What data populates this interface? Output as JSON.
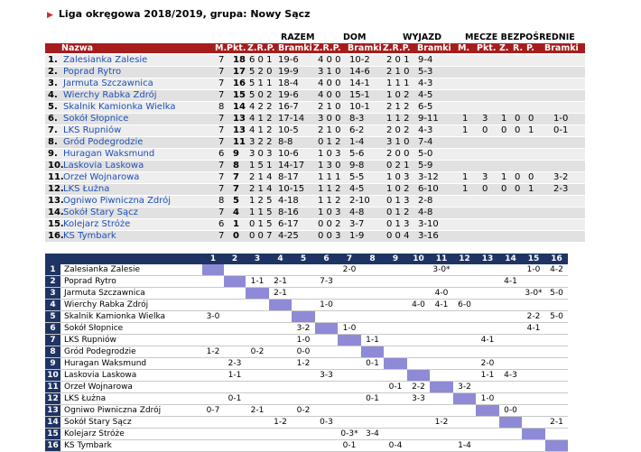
{
  "title": "Liga okręgowa 2018/2019, grupa: Nowy Sącz",
  "title_arrow": "▶",
  "group_labels": {
    "razem": "RAZEM",
    "dom": "DOM",
    "wyjazd": "WYJAZD",
    "mecze": "MECZE BEZPOŚREDNIE"
  },
  "header": {
    "nazwa": "Nazwa",
    "m": "M.",
    "pkt": "Pkt.",
    "zrp": "Z.R.P.",
    "bramki": "Bramki",
    "dom_zrp": "Z.R.P.",
    "dom_bramki": "Bramki",
    "wy_zrp": "Z.R.P.",
    "wy_bramki": "Bramki",
    "bm_m": "M.",
    "bm_pkt": "Pkt.",
    "bm_z": "Z.",
    "bm_r": "R.",
    "bm_p": "P.",
    "bm_bramki": "Bramki"
  },
  "standings": [
    {
      "pos": "1.",
      "team": "Zalesianka Zalesie",
      "m": "7",
      "pkt": "18",
      "zrp": "6 0 1",
      "bramki": "19-6",
      "dom_zrp": "4 0 0",
      "dom_bramki": "10-2",
      "wy_zrp": "2 0 1",
      "wy_bramki": "9-4",
      "bm_m": "",
      "bm_pkt": "",
      "bm_z": "",
      "bm_r": "",
      "bm_p": "",
      "bm_bramki": ""
    },
    {
      "pos": "2.",
      "team": "Poprad Rytro",
      "m": "7",
      "pkt": "17",
      "zrp": "5 2 0",
      "bramki": "19-9",
      "dom_zrp": "3 1 0",
      "dom_bramki": "14-6",
      "wy_zrp": "2 1 0",
      "wy_bramki": "5-3",
      "bm_m": "",
      "bm_pkt": "",
      "bm_z": "",
      "bm_r": "",
      "bm_p": "",
      "bm_bramki": ""
    },
    {
      "pos": "3.",
      "team": "Jarmuta Szczawnica",
      "m": "7",
      "pkt": "16",
      "zrp": "5 1 1",
      "bramki": "18-4",
      "dom_zrp": "4 0 0",
      "dom_bramki": "14-1",
      "wy_zrp": "1 1 1",
      "wy_bramki": "4-3",
      "bm_m": "",
      "bm_pkt": "",
      "bm_z": "",
      "bm_r": "",
      "bm_p": "",
      "bm_bramki": ""
    },
    {
      "pos": "4.",
      "team": "Wierchy Rabka Zdrój",
      "m": "7",
      "pkt": "15",
      "zrp": "5 0 2",
      "bramki": "19-6",
      "dom_zrp": "4 0 0",
      "dom_bramki": "15-1",
      "wy_zrp": "1 0 2",
      "wy_bramki": "4-5",
      "bm_m": "",
      "bm_pkt": "",
      "bm_z": "",
      "bm_r": "",
      "bm_p": "",
      "bm_bramki": ""
    },
    {
      "pos": "5.",
      "team": "Skalnik Kamionka Wielka",
      "m": "8",
      "pkt": "14",
      "zrp": "4 2 2",
      "bramki": "16-7",
      "dom_zrp": "2 1 0",
      "dom_bramki": "10-1",
      "wy_zrp": "2 1 2",
      "wy_bramki": "6-5",
      "bm_m": "",
      "bm_pkt": "",
      "bm_z": "",
      "bm_r": "",
      "bm_p": "",
      "bm_bramki": ""
    },
    {
      "pos": "6.",
      "team": "Sokół Słopnice",
      "m": "7",
      "pkt": "13",
      "zrp": "4 1 2",
      "bramki": "17-14",
      "dom_zrp": "3 0 0",
      "dom_bramki": "8-3",
      "wy_zrp": "1 1 2",
      "wy_bramki": "9-11",
      "bm_m": "1",
      "bm_pkt": "3",
      "bm_z": "1",
      "bm_r": "0",
      "bm_p": "0",
      "bm_bramki": "1-0"
    },
    {
      "pos": "7.",
      "team": "LKS Rupniów",
      "m": "7",
      "pkt": "13",
      "zrp": "4 1 2",
      "bramki": "10-5",
      "dom_zrp": "2 1 0",
      "dom_bramki": "6-2",
      "wy_zrp": "2 0 2",
      "wy_bramki": "4-3",
      "bm_m": "1",
      "bm_pkt": "0",
      "bm_z": "0",
      "bm_r": "0",
      "bm_p": "1",
      "bm_bramki": "0-1"
    },
    {
      "pos": "8.",
      "team": "Gród Podegrodzie",
      "m": "7",
      "pkt": "11",
      "zrp": "3 2 2",
      "bramki": "8-8",
      "dom_zrp": "0 1 2",
      "dom_bramki": "1-4",
      "wy_zrp": "3 1 0",
      "wy_bramki": "7-4",
      "bm_m": "",
      "bm_pkt": "",
      "bm_z": "",
      "bm_r": "",
      "bm_p": "",
      "bm_bramki": ""
    },
    {
      "pos": "9.",
      "team": "Huragan Waksmund",
      "m": "6",
      "pkt": "9",
      "zrp": "3 0 3",
      "bramki": "10-6",
      "dom_zrp": "1 0 3",
      "dom_bramki": "5-6",
      "wy_zrp": "2 0 0",
      "wy_bramki": "5-0",
      "bm_m": "",
      "bm_pkt": "",
      "bm_z": "",
      "bm_r": "",
      "bm_p": "",
      "bm_bramki": ""
    },
    {
      "pos": "10.",
      "team": "Laskovia Laskowa",
      "m": "7",
      "pkt": "8",
      "zrp": "1 5 1",
      "bramki": "14-17",
      "dom_zrp": "1 3 0",
      "dom_bramki": "9-8",
      "wy_zrp": "0 2 1",
      "wy_bramki": "5-9",
      "bm_m": "",
      "bm_pkt": "",
      "bm_z": "",
      "bm_r": "",
      "bm_p": "",
      "bm_bramki": ""
    },
    {
      "pos": "11.",
      "team": "Orzeł Wojnarowa",
      "m": "7",
      "pkt": "7",
      "zrp": "2 1 4",
      "bramki": "8-17",
      "dom_zrp": "1 1 1",
      "dom_bramki": "5-5",
      "wy_zrp": "1 0 3",
      "wy_bramki": "3-12",
      "bm_m": "1",
      "bm_pkt": "3",
      "bm_z": "1",
      "bm_r": "0",
      "bm_p": "0",
      "bm_bramki": "3-2"
    },
    {
      "pos": "12.",
      "team": "LKS Łużna",
      "m": "7",
      "pkt": "7",
      "zrp": "2 1 4",
      "bramki": "10-15",
      "dom_zrp": "1 1 2",
      "dom_bramki": "4-5",
      "wy_zrp": "1 0 2",
      "wy_bramki": "6-10",
      "bm_m": "1",
      "bm_pkt": "0",
      "bm_z": "0",
      "bm_r": "0",
      "bm_p": "1",
      "bm_bramki": "2-3"
    },
    {
      "pos": "13.",
      "team": "Ogniwo Piwniczna Zdrój",
      "m": "8",
      "pkt": "5",
      "zrp": "1 2 5",
      "bramki": "4-18",
      "dom_zrp": "1 1 2",
      "dom_bramki": "2-10",
      "wy_zrp": "0 1 3",
      "wy_bramki": "2-8",
      "bm_m": "",
      "bm_pkt": "",
      "bm_z": "",
      "bm_r": "",
      "bm_p": "",
      "bm_bramki": ""
    },
    {
      "pos": "14.",
      "team": "Sokół Stary Sącz",
      "m": "7",
      "pkt": "4",
      "zrp": "1 1 5",
      "bramki": "8-16",
      "dom_zrp": "1 0 3",
      "dom_bramki": "4-8",
      "wy_zrp": "0 1 2",
      "wy_bramki": "4-8",
      "bm_m": "",
      "bm_pkt": "",
      "bm_z": "",
      "bm_r": "",
      "bm_p": "",
      "bm_bramki": ""
    },
    {
      "pos": "15.",
      "team": "Kolejarz Stróże",
      "m": "6",
      "pkt": "1",
      "zrp": "0 1 5",
      "bramki": "6-17",
      "dom_zrp": "0 0 2",
      "dom_bramki": "3-7",
      "wy_zrp": "0 1 3",
      "wy_bramki": "3-10",
      "bm_m": "",
      "bm_pkt": "",
      "bm_z": "",
      "bm_r": "",
      "bm_p": "",
      "bm_bramki": ""
    },
    {
      "pos": "16.",
      "team": "KS Tymbark",
      "m": "7",
      "pkt": "0",
      "zrp": "0 0 7",
      "bramki": "4-25",
      "dom_zrp": "0 0 3",
      "dom_bramki": "1-9",
      "wy_zrp": "0 0 4",
      "wy_bramki": "3-16",
      "bm_m": "",
      "bm_pkt": "",
      "bm_z": "",
      "bm_r": "",
      "bm_p": "",
      "bm_bramki": ""
    }
  ],
  "results_matrix": {
    "columns": [
      "1",
      "2",
      "3",
      "4",
      "5",
      "6",
      "7",
      "8",
      "9",
      "10",
      "11",
      "12",
      "13",
      "14",
      "15",
      "16"
    ],
    "rows": [
      {
        "num": "1",
        "team": "Zalesianka Zalesie",
        "cells": [
          "",
          "",
          "",
          "",
          "",
          "",
          "2-0",
          "",
          "",
          "",
          "3-0*",
          "",
          "",
          "",
          "1-0",
          "4-2"
        ]
      },
      {
        "num": "2",
        "team": "Poprad Rytro",
        "cells": [
          "",
          "",
          "1-1",
          "2-1",
          "",
          "7-3",
          "",
          "",
          "",
          "",
          "",
          "",
          "",
          "4-1",
          "",
          ""
        ]
      },
      {
        "num": "3",
        "team": "Jarmuta Szczawnica",
        "cells": [
          "",
          "",
          "",
          "2-1",
          "",
          "",
          "",
          "",
          "",
          "",
          "4-0",
          "",
          "",
          "",
          "3-0*",
          "5-0"
        ]
      },
      {
        "num": "4",
        "team": "Wierchy Rabka Zdrój",
        "cells": [
          "",
          "",
          "",
          "",
          "",
          "1-0",
          "",
          "",
          "",
          "4-0",
          "4-1",
          "6-0",
          "",
          "",
          "",
          ""
        ]
      },
      {
        "num": "5",
        "team": "Skalnik Kamionka Wielka",
        "cells": [
          "3-0",
          "",
          "",
          "",
          "",
          "",
          "",
          "",
          "",
          "",
          "",
          "",
          "",
          "",
          "2-2",
          "5-0"
        ]
      },
      {
        "num": "6",
        "team": "Sokół Słopnice",
        "cells": [
          "",
          "",
          "",
          "",
          "3-2",
          "",
          "1-0",
          "",
          "",
          "",
          "",
          "",
          "",
          "",
          "4-1",
          ""
        ]
      },
      {
        "num": "7",
        "team": "LKS Rupniów",
        "cells": [
          "",
          "",
          "",
          "",
          "1-0",
          "",
          "",
          "1-1",
          "",
          "",
          "",
          "",
          "4-1",
          "",
          "",
          ""
        ]
      },
      {
        "num": "8",
        "team": "Gród Podegrodzie",
        "cells": [
          "1-2",
          "",
          "0-2",
          "",
          "0-0",
          "",
          "",
          "",
          "",
          "",
          "",
          "",
          "",
          "",
          "",
          ""
        ]
      },
      {
        "num": "9",
        "team": "Huragan Waksmund",
        "cells": [
          "",
          "2-3",
          "",
          "",
          "1-2",
          "",
          "",
          "0-1",
          "",
          "",
          "",
          "",
          "2-0",
          "",
          "",
          ""
        ]
      },
      {
        "num": "10",
        "team": "Laskovia Laskowa",
        "cells": [
          "",
          "1-1",
          "",
          "",
          "",
          "3-3",
          "",
          "",
          "",
          "",
          "",
          "",
          "1-1",
          "4-3",
          "",
          ""
        ]
      },
      {
        "num": "11",
        "team": "Orzeł Wojnarowa",
        "cells": [
          "",
          "",
          "",
          "",
          "",
          "",
          "",
          "",
          "0-1",
          "2-2",
          "",
          "3-2",
          "",
          "",
          "",
          ""
        ]
      },
      {
        "num": "12",
        "team": "LKS Łużna",
        "cells": [
          "",
          "0-1",
          "",
          "",
          "",
          "",
          "",
          "0-1",
          "",
          "3-3",
          "",
          "",
          "1-0",
          "",
          "",
          ""
        ]
      },
      {
        "num": "13",
        "team": "Ogniwo Piwniczna Zdrój",
        "cells": [
          "0-7",
          "",
          "2-1",
          "",
          "0-2",
          "",
          "",
          "",
          "",
          "",
          "",
          "",
          "",
          "0-0",
          "",
          ""
        ]
      },
      {
        "num": "14",
        "team": "Sokół Stary Sącz",
        "cells": [
          "",
          "",
          "",
          "1-2",
          "",
          "0-3",
          "",
          "",
          "",
          "",
          "1-2",
          "",
          "",
          "",
          "",
          "2-1"
        ]
      },
      {
        "num": "15",
        "team": "Kolejarz Stróże",
        "cells": [
          "",
          "",
          "",
          "",
          "",
          "",
          "0-3*",
          "3-4",
          "",
          "",
          "",
          "",
          "",
          "",
          "",
          ""
        ]
      },
      {
        "num": "16",
        "team": "KS Tymbark",
        "cells": [
          "",
          "",
          "",
          "",
          "",
          "",
          "0-1",
          "",
          "0-4",
          "",
          "",
          "1-4",
          "",
          "",
          "",
          ""
        ]
      }
    ]
  },
  "colors": {
    "title_arrow": "#c8312a",
    "standings_header_bg": "#a51d1d",
    "team_link": "#1f4fb5",
    "row_light": "#eeeeee",
    "row_dark": "#e1e1e1",
    "matrix_header_bg": "#1f3464",
    "matrix_diagonal": "#8f8ad6"
  }
}
